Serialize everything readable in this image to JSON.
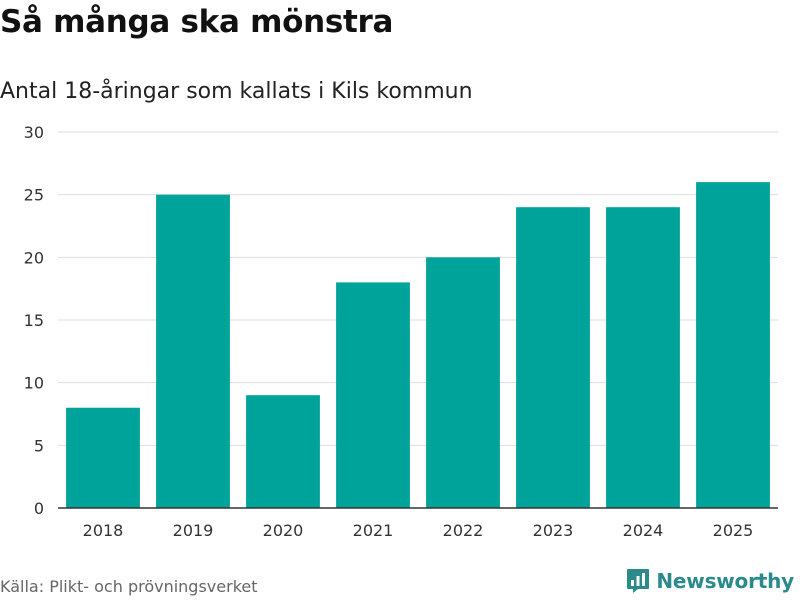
{
  "header": {
    "title": "Så många ska mönstra",
    "subtitle": "Antal 18-åringar som kallats i Kils kommun"
  },
  "footer": {
    "source": "Källa: Plikt- och prövningsverket",
    "brand": "Newsworthy",
    "brand_icon": "bar-chart-logo-icon"
  },
  "colors": {
    "bar": "#00a39a",
    "grid": "#dddddd",
    "axis": "#333333",
    "brand": "#2a8a8c"
  },
  "chart_data": {
    "type": "bar",
    "title": "Så många ska mönstra",
    "subtitle": "Antal 18-åringar som kallats i Kils kommun",
    "categories": [
      "2018",
      "2019",
      "2020",
      "2021",
      "2022",
      "2023",
      "2024",
      "2025"
    ],
    "values": [
      8,
      25,
      9,
      18,
      20,
      24,
      24,
      26
    ],
    "yticks": [
      0,
      5,
      10,
      15,
      20,
      25,
      30
    ],
    "ylim": [
      0,
      30
    ],
    "xlabel": "",
    "ylabel": "",
    "grid": true,
    "legend": "none"
  }
}
